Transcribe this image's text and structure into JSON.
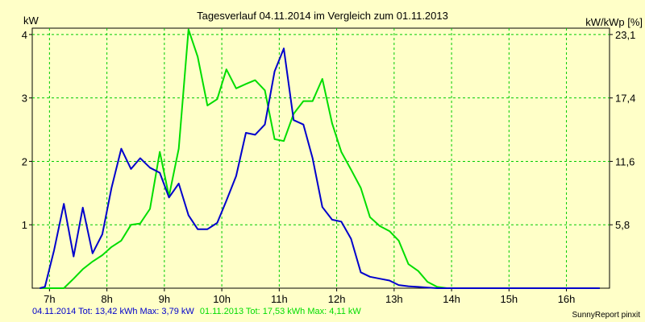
{
  "chart_data": {
    "type": "line",
    "title": "Tagesverlauf 04.11.2014 im Vergleich zum 01.11.2013",
    "ylabel_left": "kW",
    "ylabel_right": "kW/kWp [%]",
    "xlim": [
      6.7,
      16.75
    ],
    "ylim": [
      0,
      4.1
    ],
    "x_ticks": [
      7,
      8,
      9,
      10,
      11,
      12,
      13,
      14,
      15,
      16
    ],
    "x_tick_labels": [
      "7h",
      "8h",
      "9h",
      "10h",
      "11h",
      "12h",
      "13h",
      "14h",
      "15h",
      "16h"
    ],
    "y_ticks_left": [
      1,
      2,
      3,
      4
    ],
    "y_tick_labels_left": [
      "1",
      "2",
      "3",
      "4"
    ],
    "y_ticks_right": [
      1,
      2,
      3,
      4
    ],
    "y_tick_labels_right": [
      "5,8",
      "11,6",
      "17,4",
      "23,1"
    ],
    "grid": true,
    "series": [
      {
        "name": "04.11.2014",
        "color": "#0000CC",
        "x": [
          6.83,
          6.92,
          7.08,
          7.25,
          7.42,
          7.58,
          7.75,
          7.92,
          8.08,
          8.25,
          8.42,
          8.58,
          8.75,
          8.92,
          9.08,
          9.25,
          9.42,
          9.58,
          9.75,
          9.92,
          10.08,
          10.25,
          10.42,
          10.58,
          10.75,
          10.92,
          11.08,
          11.25,
          11.42,
          11.58,
          11.75,
          11.92,
          12.08,
          12.25,
          12.42,
          12.58,
          12.75,
          12.92,
          13.08,
          13.25,
          13.42,
          13.58,
          13.75,
          13.92,
          14.08,
          14.25,
          14.42,
          14.58,
          14.75,
          14.92,
          15.08,
          15.25,
          15.42,
          15.58,
          15.75,
          15.92,
          16.08,
          16.25,
          16.42,
          16.58
        ],
        "values": [
          0.0,
          0.02,
          0.6,
          1.33,
          0.5,
          1.27,
          0.55,
          0.85,
          1.58,
          2.2,
          1.88,
          2.05,
          1.9,
          1.82,
          1.43,
          1.65,
          1.15,
          0.93,
          0.93,
          1.03,
          1.38,
          1.77,
          2.45,
          2.42,
          2.58,
          3.42,
          3.78,
          2.65,
          2.58,
          2.05,
          1.28,
          1.08,
          1.05,
          0.78,
          0.25,
          0.18,
          0.15,
          0.12,
          0.05,
          0.03,
          0.02,
          0.01,
          0.0,
          0.0,
          0.0,
          0.0,
          0.0,
          0.0,
          0.0,
          0.0,
          0.0,
          0.0,
          0.0,
          0.0,
          0.0,
          0.0,
          0.0,
          0.0,
          0.0,
          0.0
        ]
      },
      {
        "name": "01.11.2013",
        "color": "#00DD00",
        "x": [
          6.83,
          7.08,
          7.25,
          7.42,
          7.58,
          7.75,
          7.92,
          8.08,
          8.25,
          8.42,
          8.58,
          8.75,
          8.92,
          9.08,
          9.25,
          9.42,
          9.58,
          9.75,
          9.92,
          10.08,
          10.25,
          10.42,
          10.58,
          10.75,
          10.92,
          11.08,
          11.25,
          11.42,
          11.58,
          11.75,
          11.92,
          12.08,
          12.25,
          12.42,
          12.58,
          12.75,
          12.92,
          13.08,
          13.25,
          13.42,
          13.58,
          13.75,
          13.92,
          14.08,
          14.25,
          14.42,
          14.58,
          14.75,
          14.92,
          15.08,
          15.25,
          15.42,
          15.58,
          15.75,
          15.92,
          16.08,
          16.25,
          16.42,
          16.58
        ],
        "values": [
          0.0,
          0.0,
          0.0,
          0.15,
          0.3,
          0.42,
          0.52,
          0.65,
          0.75,
          1.0,
          1.02,
          1.25,
          2.15,
          1.45,
          2.2,
          4.08,
          3.65,
          2.88,
          2.98,
          3.45,
          3.15,
          3.22,
          3.28,
          3.12,
          2.35,
          2.32,
          2.75,
          2.95,
          2.95,
          3.3,
          2.6,
          2.15,
          1.87,
          1.58,
          1.12,
          0.98,
          0.9,
          0.75,
          0.38,
          0.27,
          0.1,
          0.02,
          0.0,
          0.0,
          0.0,
          0.0,
          0.0,
          0.0,
          0.0,
          0.0,
          0.0,
          0.0,
          0.0,
          0.0,
          0.0,
          0.0,
          0.0,
          0.0,
          0.0
        ]
      }
    ],
    "footer": [
      {
        "text": "04.11.2014 Tot: 13,42 kWh Max: 3,79 kW",
        "color": "#0000CC"
      },
      {
        "text": "01.11.2013 Tot: 17,53 kWh Max: 4,11 kW",
        "color": "#00DD00"
      }
    ],
    "credit": "SunnyReport pinxit",
    "colors": {
      "background": "#FFFFC8",
      "grid": "#00CC00",
      "axis": "#000000"
    }
  }
}
